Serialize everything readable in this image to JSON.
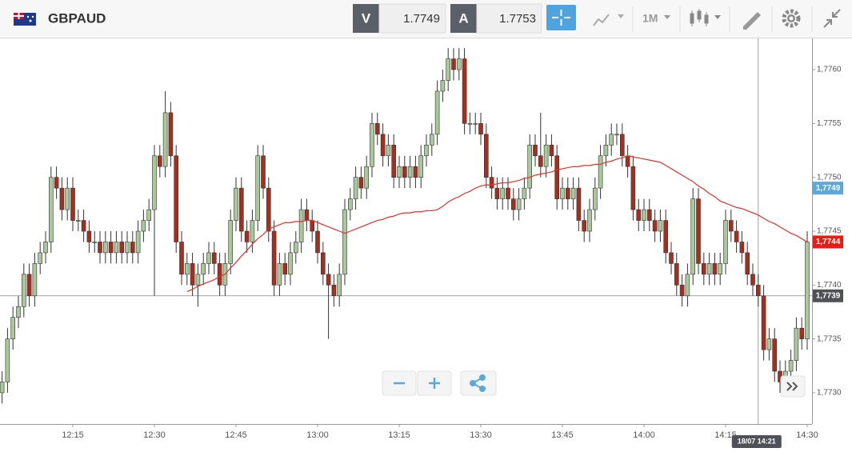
{
  "toolbar": {
    "symbol": "GBPAUD",
    "bid_label": "V",
    "bid": 1.7749,
    "ask_label": "A",
    "ask": 1.7753,
    "timeframe": "1M"
  },
  "chart_data": {
    "type": "candlestick",
    "categories": [
      "12:02",
      "12:03",
      "12:04",
      "12:05",
      "12:06",
      "12:07",
      "12:08",
      "12:09",
      "12:10",
      "12:11",
      "12:12",
      "12:13",
      "12:14",
      "12:15",
      "12:16",
      "12:17",
      "12:18",
      "12:19",
      "12:20",
      "12:21",
      "12:22",
      "12:23",
      "12:24",
      "12:25",
      "12:26",
      "12:27",
      "12:28",
      "12:29",
      "12:30",
      "12:31",
      "12:32",
      "12:33",
      "12:34",
      "12:35",
      "12:36",
      "12:37",
      "12:38",
      "12:39",
      "12:40",
      "12:41",
      "12:42",
      "12:43",
      "12:44",
      "12:45",
      "12:46",
      "12:47",
      "12:48",
      "12:49",
      "12:50",
      "12:51",
      "12:52",
      "12:53",
      "12:54",
      "12:55",
      "12:56",
      "12:57",
      "12:58",
      "12:59",
      "13:00",
      "13:01",
      "13:02",
      "13:03",
      "13:04",
      "13:05",
      "13:06",
      "13:07",
      "13:08",
      "13:09",
      "13:10",
      "13:11",
      "13:12",
      "13:13",
      "13:14",
      "13:15",
      "13:16",
      "13:17",
      "13:18",
      "13:19",
      "13:20",
      "13:21",
      "13:22",
      "13:23",
      "13:24",
      "13:25",
      "13:26",
      "13:27",
      "13:28",
      "13:29",
      "13:30",
      "13:31",
      "13:32",
      "13:33",
      "13:34",
      "13:35",
      "13:36",
      "13:37",
      "13:38",
      "13:39",
      "13:40",
      "13:41",
      "13:42",
      "13:43",
      "13:44",
      "13:45",
      "13:46",
      "13:47",
      "13:48",
      "13:49",
      "13:50",
      "13:51",
      "13:52",
      "13:53",
      "13:54",
      "13:55",
      "13:56",
      "13:57",
      "13:58",
      "13:59",
      "14:00",
      "14:01",
      "14:02",
      "14:03",
      "14:04",
      "14:05",
      "14:06",
      "14:07",
      "14:08",
      "14:09",
      "14:10",
      "14:11",
      "14:12",
      "14:13",
      "14:14",
      "14:15",
      "14:16",
      "14:17",
      "14:18",
      "14:19",
      "14:20",
      "14:21",
      "14:22",
      "14:23",
      "14:24",
      "14:25",
      "14:26",
      "14:27",
      "14:28",
      "14:29",
      "14:30"
    ],
    "open": [
      1.773,
      1.7731,
      1.7735,
      1.7737,
      1.7738,
      1.7741,
      1.7739,
      1.7742,
      1.7743,
      1.7744,
      1.775,
      1.7749,
      1.7747,
      1.7749,
      1.7746,
      1.7746,
      1.7745,
      1.7744,
      1.7744,
      1.7743,
      1.7744,
      1.7743,
      1.7744,
      1.7743,
      1.7744,
      1.7743,
      1.7745,
      1.7746,
      1.7747,
      1.7752,
      1.7751,
      1.7756,
      1.7752,
      1.7744,
      1.7741,
      1.7742,
      1.774,
      1.7741,
      1.7742,
      1.7743,
      1.7742,
      1.774,
      1.7742,
      1.7746,
      1.7749,
      1.7745,
      1.7744,
      1.7746,
      1.7752,
      1.7749,
      1.7745,
      1.774,
      1.7742,
      1.7741,
      1.7743,
      1.7744,
      1.7747,
      1.7746,
      1.7745,
      1.7743,
      1.7741,
      1.774,
      1.7739,
      1.7741,
      1.7747,
      1.7748,
      1.775,
      1.7749,
      1.7751,
      1.7755,
      1.7754,
      1.7752,
      1.7753,
      1.775,
      1.7751,
      1.775,
      1.7751,
      1.775,
      1.7752,
      1.7753,
      1.7754,
      1.7758,
      1.7759,
      1.7761,
      1.776,
      1.7761,
      1.7755,
      1.7755,
      1.7755,
      1.7754,
      1.775,
      1.7749,
      1.7748,
      1.7749,
      1.7748,
      1.7747,
      1.7748,
      1.7749,
      1.7753,
      1.7752,
      1.7751,
      1.7753,
      1.7752,
      1.7748,
      1.7749,
      1.7748,
      1.7749,
      1.7746,
      1.7745,
      1.7747,
      1.7749,
      1.7752,
      1.7753,
      1.7754,
      1.7754,
      1.7752,
      1.7751,
      1.7747,
      1.7746,
      1.7747,
      1.7746,
      1.7745,
      1.7746,
      1.7743,
      1.7742,
      1.774,
      1.7739,
      1.7741,
      1.7748,
      1.7742,
      1.7741,
      1.7742,
      1.7741,
      1.7742,
      1.7746,
      1.7745,
      1.7744,
      1.7743,
      1.7741,
      1.774,
      1.7739,
      1.7734,
      1.7735,
      1.7732,
      1.7731,
      1.7732,
      1.7733,
      1.7736,
      1.7735
    ],
    "high": [
      1.7732,
      1.7736,
      1.7738,
      1.7739,
      1.7742,
      1.7742,
      1.7743,
      1.7744,
      1.7745,
      1.7751,
      1.7751,
      1.775,
      1.775,
      1.775,
      1.7747,
      1.7747,
      1.7746,
      1.7745,
      1.7745,
      1.7745,
      1.7745,
      1.7745,
      1.7745,
      1.7745,
      1.7745,
      1.7746,
      1.7747,
      1.7748,
      1.7753,
      1.7753,
      1.7758,
      1.7757,
      1.7753,
      1.7745,
      1.7743,
      1.7743,
      1.7742,
      1.7743,
      1.7744,
      1.7744,
      1.7743,
      1.7743,
      1.7747,
      1.775,
      1.775,
      1.7746,
      1.7747,
      1.7753,
      1.7753,
      1.775,
      1.7746,
      1.7743,
      1.7743,
      1.7744,
      1.7745,
      1.7748,
      1.7748,
      1.7747,
      1.7746,
      1.7744,
      1.7742,
      1.7741,
      1.7742,
      1.7748,
      1.7749,
      1.7751,
      1.7751,
      1.7752,
      1.7756,
      1.7756,
      1.7755,
      1.7754,
      1.7754,
      1.7752,
      1.7752,
      1.7752,
      1.7752,
      1.7753,
      1.7754,
      1.7755,
      1.7759,
      1.776,
      1.7762,
      1.7762,
      1.7762,
      1.7762,
      1.7756,
      1.7756,
      1.7756,
      1.7755,
      1.7751,
      1.775,
      1.775,
      1.775,
      1.7749,
      1.7749,
      1.775,
      1.7754,
      1.7754,
      1.7756,
      1.7754,
      1.7754,
      1.7753,
      1.775,
      1.775,
      1.775,
      1.775,
      1.7747,
      1.7748,
      1.775,
      1.7753,
      1.7754,
      1.7755,
      1.7755,
      1.7755,
      1.7753,
      1.7752,
      1.7748,
      1.7748,
      1.7748,
      1.7747,
      1.7747,
      1.7747,
      1.7744,
      1.7743,
      1.7741,
      1.7742,
      1.7749,
      1.7749,
      1.7743,
      1.7743,
      1.7743,
      1.7743,
      1.7747,
      1.7747,
      1.7746,
      1.7745,
      1.7744,
      1.7742,
      1.7741,
      1.774,
      1.7736,
      1.7736,
      1.7733,
      1.7733,
      1.7734,
      1.7737,
      1.7737,
      1.7745
    ],
    "low": [
      1.7729,
      1.773,
      1.7734,
      1.7736,
      1.7737,
      1.7738,
      1.7738,
      1.7741,
      1.7742,
      1.7743,
      1.7748,
      1.7746,
      1.7746,
      1.7745,
      1.7745,
      1.7744,
      1.7743,
      1.7743,
      1.7742,
      1.7742,
      1.7742,
      1.7742,
      1.7742,
      1.7742,
      1.7742,
      1.7742,
      1.7744,
      1.7745,
      1.7739,
      1.775,
      1.775,
      1.7751,
      1.7743,
      1.774,
      1.774,
      1.7739,
      1.7738,
      1.774,
      1.7741,
      1.7741,
      1.7739,
      1.7739,
      1.7741,
      1.7745,
      1.7744,
      1.7743,
      1.7743,
      1.7745,
      1.7748,
      1.7744,
      1.7739,
      1.7739,
      1.774,
      1.774,
      1.7742,
      1.7743,
      1.7745,
      1.7744,
      1.7742,
      1.774,
      1.7735,
      1.7738,
      1.7738,
      1.774,
      1.7746,
      1.7747,
      1.7748,
      1.7748,
      1.775,
      1.7753,
      1.7751,
      1.7751,
      1.7749,
      1.7749,
      1.7749,
      1.7749,
      1.7749,
      1.7749,
      1.7751,
      1.7752,
      1.7753,
      1.7757,
      1.7758,
      1.7759,
      1.7759,
      1.7754,
      1.7754,
      1.7754,
      1.7753,
      1.7749,
      1.7748,
      1.7747,
      1.7747,
      1.7747,
      1.7746,
      1.7746,
      1.7747,
      1.7748,
      1.7751,
      1.775,
      1.775,
      1.7751,
      1.7747,
      1.7747,
      1.7747,
      1.7747,
      1.7745,
      1.7744,
      1.7744,
      1.7746,
      1.7748,
      1.7751,
      1.7752,
      1.7753,
      1.7751,
      1.775,
      1.7746,
      1.7745,
      1.7745,
      1.7745,
      1.7744,
      1.7744,
      1.7742,
      1.7741,
      1.7739,
      1.7738,
      1.7738,
      1.774,
      1.7741,
      1.774,
      1.774,
      1.774,
      1.774,
      1.7741,
      1.7744,
      1.7743,
      1.7742,
      1.774,
      1.7739,
      1.7738,
      1.7733,
      1.7733,
      1.7731,
      1.773,
      1.773,
      1.7731,
      1.7732,
      1.7734,
      1.7734
    ],
    "close": [
      1.7731,
      1.7735,
      1.7737,
      1.7738,
      1.7741,
      1.7739,
      1.7742,
      1.7743,
      1.7744,
      1.775,
      1.7749,
      1.7747,
      1.7749,
      1.7746,
      1.7746,
      1.7745,
      1.7744,
      1.7744,
      1.7743,
      1.7744,
      1.7743,
      1.7744,
      1.7743,
      1.7744,
      1.7743,
      1.7745,
      1.7746,
      1.7747,
      1.7752,
      1.7751,
      1.7756,
      1.7752,
      1.7744,
      1.7741,
      1.7742,
      1.774,
      1.7741,
      1.7742,
      1.7743,
      1.7742,
      1.774,
      1.7742,
      1.7746,
      1.7749,
      1.7745,
      1.7744,
      1.7746,
      1.7752,
      1.7749,
      1.7745,
      1.774,
      1.7742,
      1.7741,
      1.7743,
      1.7744,
      1.7747,
      1.7746,
      1.7745,
      1.7743,
      1.7741,
      1.774,
      1.7739,
      1.7741,
      1.7747,
      1.7748,
      1.775,
      1.7749,
      1.7751,
      1.7755,
      1.7754,
      1.7752,
      1.7753,
      1.775,
      1.7751,
      1.775,
      1.7751,
      1.775,
      1.7752,
      1.7753,
      1.7754,
      1.7758,
      1.7759,
      1.7761,
      1.776,
      1.7761,
      1.7755,
      1.7755,
      1.7755,
      1.7754,
      1.775,
      1.7749,
      1.7748,
      1.7749,
      1.7748,
      1.7747,
      1.7748,
      1.7749,
      1.7753,
      1.7752,
      1.7751,
      1.7753,
      1.7752,
      1.7748,
      1.7749,
      1.7748,
      1.7749,
      1.7746,
      1.7745,
      1.7747,
      1.7749,
      1.7752,
      1.7753,
      1.7754,
      1.7754,
      1.7752,
      1.7751,
      1.7747,
      1.7746,
      1.7747,
      1.7746,
      1.7745,
      1.7746,
      1.7743,
      1.7742,
      1.774,
      1.7739,
      1.7741,
      1.7748,
      1.7742,
      1.7741,
      1.7742,
      1.7741,
      1.7742,
      1.7746,
      1.7745,
      1.7744,
      1.7743,
      1.7741,
      1.774,
      1.7739,
      1.7734,
      1.7735,
      1.7732,
      1.7731,
      1.7732,
      1.7733,
      1.7736,
      1.7735,
      1.7744
    ],
    "up_color": "#a9c99b",
    "down_color": "#a3301f",
    "moving_average": {
      "color": "#e0312c",
      "values": [
        null,
        null,
        null,
        null,
        null,
        null,
        null,
        null,
        null,
        null,
        null,
        null,
        null,
        null,
        null,
        null,
        null,
        null,
        null,
        null,
        null,
        null,
        null,
        null,
        null,
        null,
        null,
        null,
        null,
        null,
        null,
        null,
        null,
        null,
        1.77394,
        1.77396,
        1.77399,
        1.77401,
        1.77403,
        1.77405,
        1.77408,
        1.7741,
        1.77416,
        1.77421,
        1.77427,
        1.77432,
        1.77438,
        1.77443,
        1.77447,
        1.77452,
        1.77454,
        1.77456,
        1.77458,
        1.77458,
        1.77459,
        1.77459,
        1.7746,
        1.7746,
        1.77458,
        1.77456,
        1.77454,
        1.77452,
        1.7745,
        1.77448,
        1.7745,
        1.77452,
        1.77454,
        1.77456,
        1.77458,
        1.7746,
        1.77461,
        1.77463,
        1.77464,
        1.77466,
        1.77467,
        1.77467,
        1.77468,
        1.77468,
        1.77469,
        1.77469,
        1.7747,
        1.77473,
        1.77477,
        1.7748,
        1.77482,
        1.77485,
        1.77487,
        1.7749,
        1.77492,
        1.77493,
        1.77493,
        1.77494,
        1.77495,
        1.77495,
        1.77496,
        1.77497,
        1.77499,
        1.775,
        1.77502,
        1.77503,
        1.77504,
        1.77505,
        1.77507,
        1.77508,
        1.77509,
        1.7751,
        1.7751,
        1.77511,
        1.77511,
        1.77512,
        1.77512,
        1.77514,
        1.77515,
        1.77517,
        1.77518,
        1.7752,
        1.77519,
        1.77518,
        1.77517,
        1.77516,
        1.77515,
        1.77514,
        1.77511,
        1.77508,
        1.77505,
        1.77502,
        1.77499,
        1.77496,
        1.77492,
        1.77489,
        1.77485,
        1.77482,
        1.77478,
        1.77476,
        1.77474,
        1.77472,
        1.77471,
        1.77469,
        1.77467,
        1.77465,
        1.77462,
        1.77459,
        1.77457,
        1.77454,
        1.77451,
        1.77448,
        1.77446,
        1.77443,
        1.7744
      ]
    },
    "ylim": [
      1.77271,
      1.77629
    ],
    "yticks": [
      {
        "value": 1.773,
        "label": "1,7730"
      },
      {
        "value": 1.7735,
        "label": "1,7735"
      },
      {
        "value": 1.774,
        "label": "1,7740"
      },
      {
        "value": 1.7745,
        "label": "1,7745"
      },
      {
        "value": 1.775,
        "label": "1,7750"
      },
      {
        "value": 1.7755,
        "label": "1,7755"
      },
      {
        "value": 1.776,
        "label": "1,7760"
      }
    ],
    "price_tags": [
      {
        "value": 1.7749,
        "label": "1,7749",
        "color": "#5ba8dc"
      },
      {
        "value": 1.7744,
        "label": "1,7744",
        "color": "#ec1a12"
      }
    ],
    "crosshair": {
      "value": 1.7739,
      "label": "1,7739",
      "time_label": "18/07 14:21"
    }
  }
}
